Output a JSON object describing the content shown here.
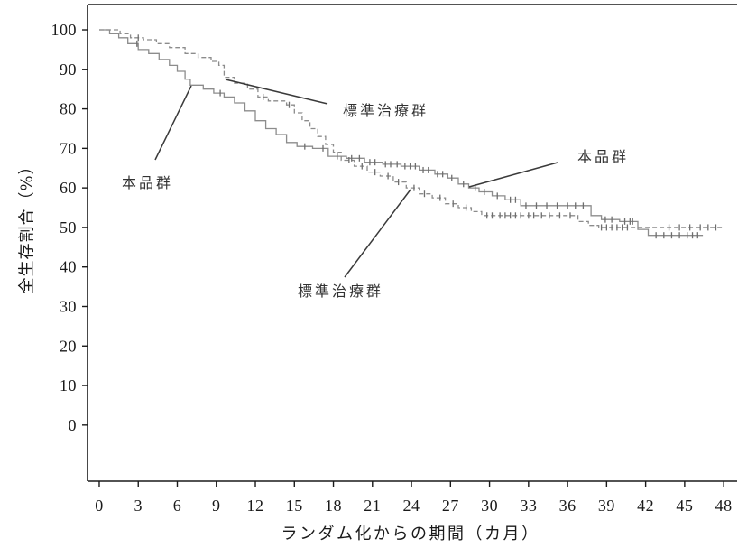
{
  "chart_data": {
    "type": "line",
    "step": true,
    "grid": false,
    "xlabel": "ランダム化からの期間（カ月）",
    "ylabel": "全生存割合（%）",
    "xlim": [
      -0.9,
      49.1
    ],
    "ylim": [
      -14.2,
      106.4
    ],
    "x_ticks": [
      0,
      3,
      6,
      9,
      12,
      15,
      18,
      21,
      24,
      27,
      30,
      33,
      36,
      39,
      42,
      45,
      48
    ],
    "y_ticks": [
      0,
      10,
      20,
      30,
      40,
      50,
      60,
      70,
      80,
      90,
      100
    ],
    "series": [
      {
        "name": "本品群",
        "color": "#8c8c8c",
        "censor_color": "#6e6e6e",
        "dashed": false,
        "x": [
          0,
          0.8,
          1.5,
          2.2,
          3.0,
          3.8,
          4.6,
          5.4,
          6.0,
          6.6,
          7.0,
          8.0,
          8.8,
          9.6,
          10.4,
          11.2,
          12.0,
          12.8,
          13.6,
          14.4,
          15.2,
          16.4,
          17.6,
          19.0,
          20.4,
          21.8,
          23.2,
          24.6,
          25.8,
          26.8,
          27.6,
          28.4,
          29.2,
          30.2,
          31.2,
          32.4,
          37.8,
          38.6,
          40.0,
          41.4,
          42.2,
          46.4
        ],
        "y": [
          100,
          99,
          98,
          96.5,
          95,
          94,
          92.5,
          91,
          89.5,
          87.5,
          86,
          85,
          84,
          83,
          81.5,
          79.5,
          77,
          75,
          73.5,
          71.5,
          70.5,
          70,
          68,
          67.5,
          66.5,
          66,
          65.5,
          64.5,
          63.5,
          62.5,
          61,
          60,
          59,
          58,
          57,
          55.5,
          53,
          52,
          51.5,
          49.5,
          48,
          48
        ],
        "censored": [
          2.9,
          9.3,
          15.8,
          17.2,
          18.3,
          19.4,
          20.0,
          20.8,
          21.2,
          22.0,
          22.4,
          22.9,
          23.5,
          23.9,
          24.3,
          24.9,
          25.3,
          26.0,
          26.4,
          27.1,
          28.0,
          28.9,
          29.6,
          30.6,
          31.6,
          32.0,
          32.8,
          33.6,
          34.4,
          35.2,
          36.0,
          36.6,
          37.2,
          38.9,
          39.4,
          40.4,
          40.8,
          41.0,
          42.8,
          43.4,
          44.0,
          44.6,
          45.2,
          45.6,
          46.0
        ]
      },
      {
        "name": "標準治療群",
        "color": "#8c8c8c",
        "censor_color": "#6e6e6e",
        "dashed": true,
        "x": [
          0,
          1.6,
          2.4,
          3.4,
          4.4,
          5.4,
          6.6,
          7.6,
          8.6,
          9.2,
          9.6,
          10.4,
          11.4,
          12.2,
          13.0,
          14.4,
          15.0,
          15.6,
          16.2,
          16.8,
          17.4,
          18.0,
          18.6,
          19.6,
          20.6,
          21.6,
          22.6,
          23.6,
          24.6,
          25.6,
          26.6,
          27.6,
          28.6,
          29.4,
          36.8,
          37.6,
          38.4,
          48.0
        ],
        "y": [
          100,
          99,
          98,
          97.5,
          96.5,
          95.5,
          94,
          93,
          92,
          91,
          88,
          86.5,
          85,
          83,
          82,
          81,
          79,
          77,
          75,
          73,
          71,
          69,
          67,
          65.5,
          64,
          63,
          61.5,
          60,
          58.5,
          57.5,
          56,
          55,
          54,
          53,
          51.5,
          50.5,
          50,
          50
        ],
        "censored": [
          3.0,
          12.6,
          14.6,
          19.2,
          20.2,
          21.2,
          22.2,
          23.0,
          24.2,
          25.0,
          26.2,
          27.2,
          28.2,
          29.8,
          30.2,
          30.8,
          31.2,
          31.6,
          32.0,
          32.4,
          33.0,
          33.4,
          34.0,
          34.6,
          35.4,
          36.2,
          38.6,
          39.0,
          39.4,
          39.8,
          40.2,
          40.6,
          43.8,
          44.6,
          45.4,
          46.2,
          46.8,
          47.4
        ]
      }
    ]
  }
}
